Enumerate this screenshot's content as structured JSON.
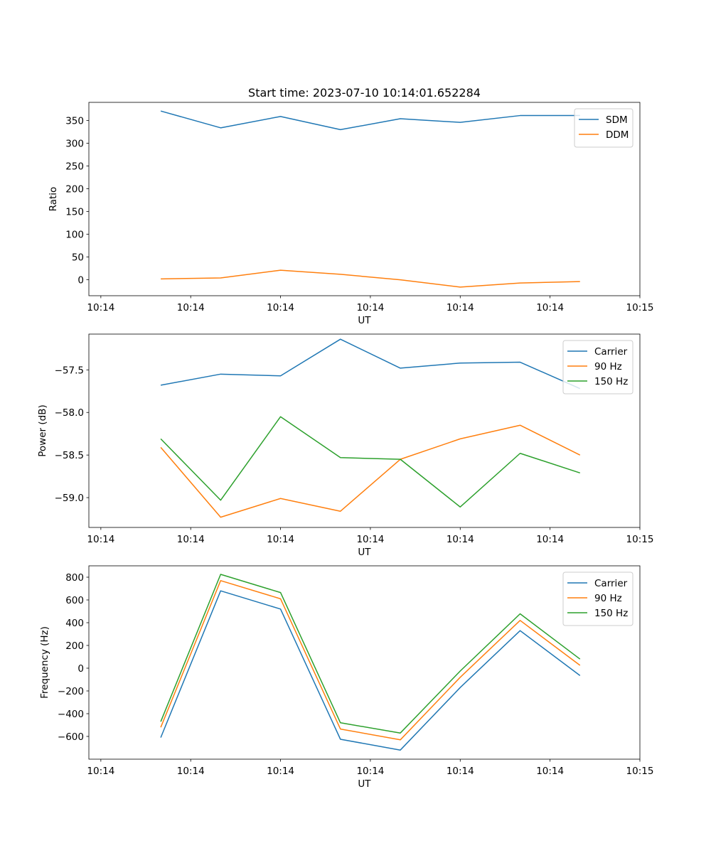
{
  "chart_data": [
    {
      "type": "line",
      "title": "Start time: 2023-07-10 10:14:01.652284",
      "xlabel": "UT",
      "ylabel": "Ratio",
      "x": [
        0.5,
        1.0,
        1.5,
        2.0,
        2.5,
        3.0,
        3.5,
        4.0
      ],
      "xlim": [
        -0.1,
        4.5
      ],
      "x_ticks": [
        0,
        0.75,
        1.5,
        2.25,
        3.0,
        3.75,
        4.5
      ],
      "x_tick_labels": [
        "10:14",
        "10:14",
        "10:14",
        "10:14",
        "10:14",
        "10:14",
        "10:15"
      ],
      "ylim": [
        -35,
        390
      ],
      "y_ticks": [
        0,
        50,
        100,
        150,
        200,
        250,
        300,
        350
      ],
      "y_tick_labels": [
        "0",
        "50",
        "100",
        "150",
        "200",
        "250",
        "300",
        "350"
      ],
      "legend_position": "top-right",
      "grid": false,
      "series": [
        {
          "name": "SDM",
          "color": "#1f77b4",
          "values": [
            371,
            334,
            359,
            330,
            354,
            346,
            361,
            361
          ]
        },
        {
          "name": "DDM",
          "color": "#ff7f0e",
          "values": [
            2,
            4,
            21,
            12,
            0,
            -16,
            -7,
            -4
          ]
        }
      ]
    },
    {
      "type": "line",
      "title": "",
      "xlabel": "UT",
      "ylabel": "Power (dB)",
      "x": [
        0.5,
        1.0,
        1.5,
        2.0,
        2.5,
        3.0,
        3.5,
        4.0
      ],
      "xlim": [
        -0.1,
        4.5
      ],
      "x_ticks": [
        0,
        0.75,
        1.5,
        2.25,
        3.0,
        3.75,
        4.5
      ],
      "x_tick_labels": [
        "10:14",
        "10:14",
        "10:14",
        "10:14",
        "10:14",
        "10:14",
        "10:15"
      ],
      "ylim": [
        -59.35,
        -57.08
      ],
      "y_ticks": [
        -57.5,
        -58.0,
        -58.5,
        -59.0
      ],
      "y_tick_labels": [
        "−57.5",
        "−58.0",
        "−58.5",
        "−59.0"
      ],
      "legend_position": "top-right",
      "grid": false,
      "series": [
        {
          "name": "Carrier",
          "color": "#1f77b4",
          "values": [
            -57.68,
            -57.55,
            -57.57,
            -57.14,
            -57.48,
            -57.42,
            -57.41,
            -57.72
          ]
        },
        {
          "name": "90 Hz",
          "color": "#ff7f0e",
          "values": [
            -58.41,
            -59.23,
            -59.01,
            -59.16,
            -58.55,
            -58.31,
            -58.15,
            -58.5
          ]
        },
        {
          "name": "150 Hz",
          "color": "#2ca02c",
          "values": [
            -58.31,
            -59.03,
            -58.05,
            -58.53,
            -58.55,
            -59.11,
            -58.48,
            -58.71
          ]
        }
      ]
    },
    {
      "type": "line",
      "title": "",
      "xlabel": "UT",
      "ylabel": "Frequency (Hz)",
      "x": [
        0.5,
        1.0,
        1.5,
        2.0,
        2.5,
        3.0,
        3.5,
        4.0
      ],
      "xlim": [
        -0.1,
        4.5
      ],
      "x_ticks": [
        0,
        0.75,
        1.5,
        2.25,
        3.0,
        3.75,
        4.5
      ],
      "x_tick_labels": [
        "10:14",
        "10:14",
        "10:14",
        "10:14",
        "10:14",
        "10:14",
        "10:15"
      ],
      "ylim": [
        -800,
        900
      ],
      "y_ticks": [
        800,
        600,
        400,
        200,
        0,
        -200,
        -400,
        -600
      ],
      "y_tick_labels": [
        "800",
        "600",
        "400",
        "200",
        "0",
        "−200",
        "−400",
        "−600"
      ],
      "legend_position": "top-right",
      "grid": false,
      "series": [
        {
          "name": "Carrier",
          "color": "#1f77b4",
          "values": [
            -610,
            680,
            520,
            -625,
            -720,
            -170,
            330,
            -65
          ]
        },
        {
          "name": "90 Hz",
          "color": "#ff7f0e",
          "values": [
            -520,
            770,
            610,
            -535,
            -630,
            -80,
            420,
            25
          ]
        },
        {
          "name": "150 Hz",
          "color": "#2ca02c",
          "values": [
            -470,
            825,
            665,
            -480,
            -570,
            -25,
            478,
            80
          ]
        }
      ]
    }
  ]
}
